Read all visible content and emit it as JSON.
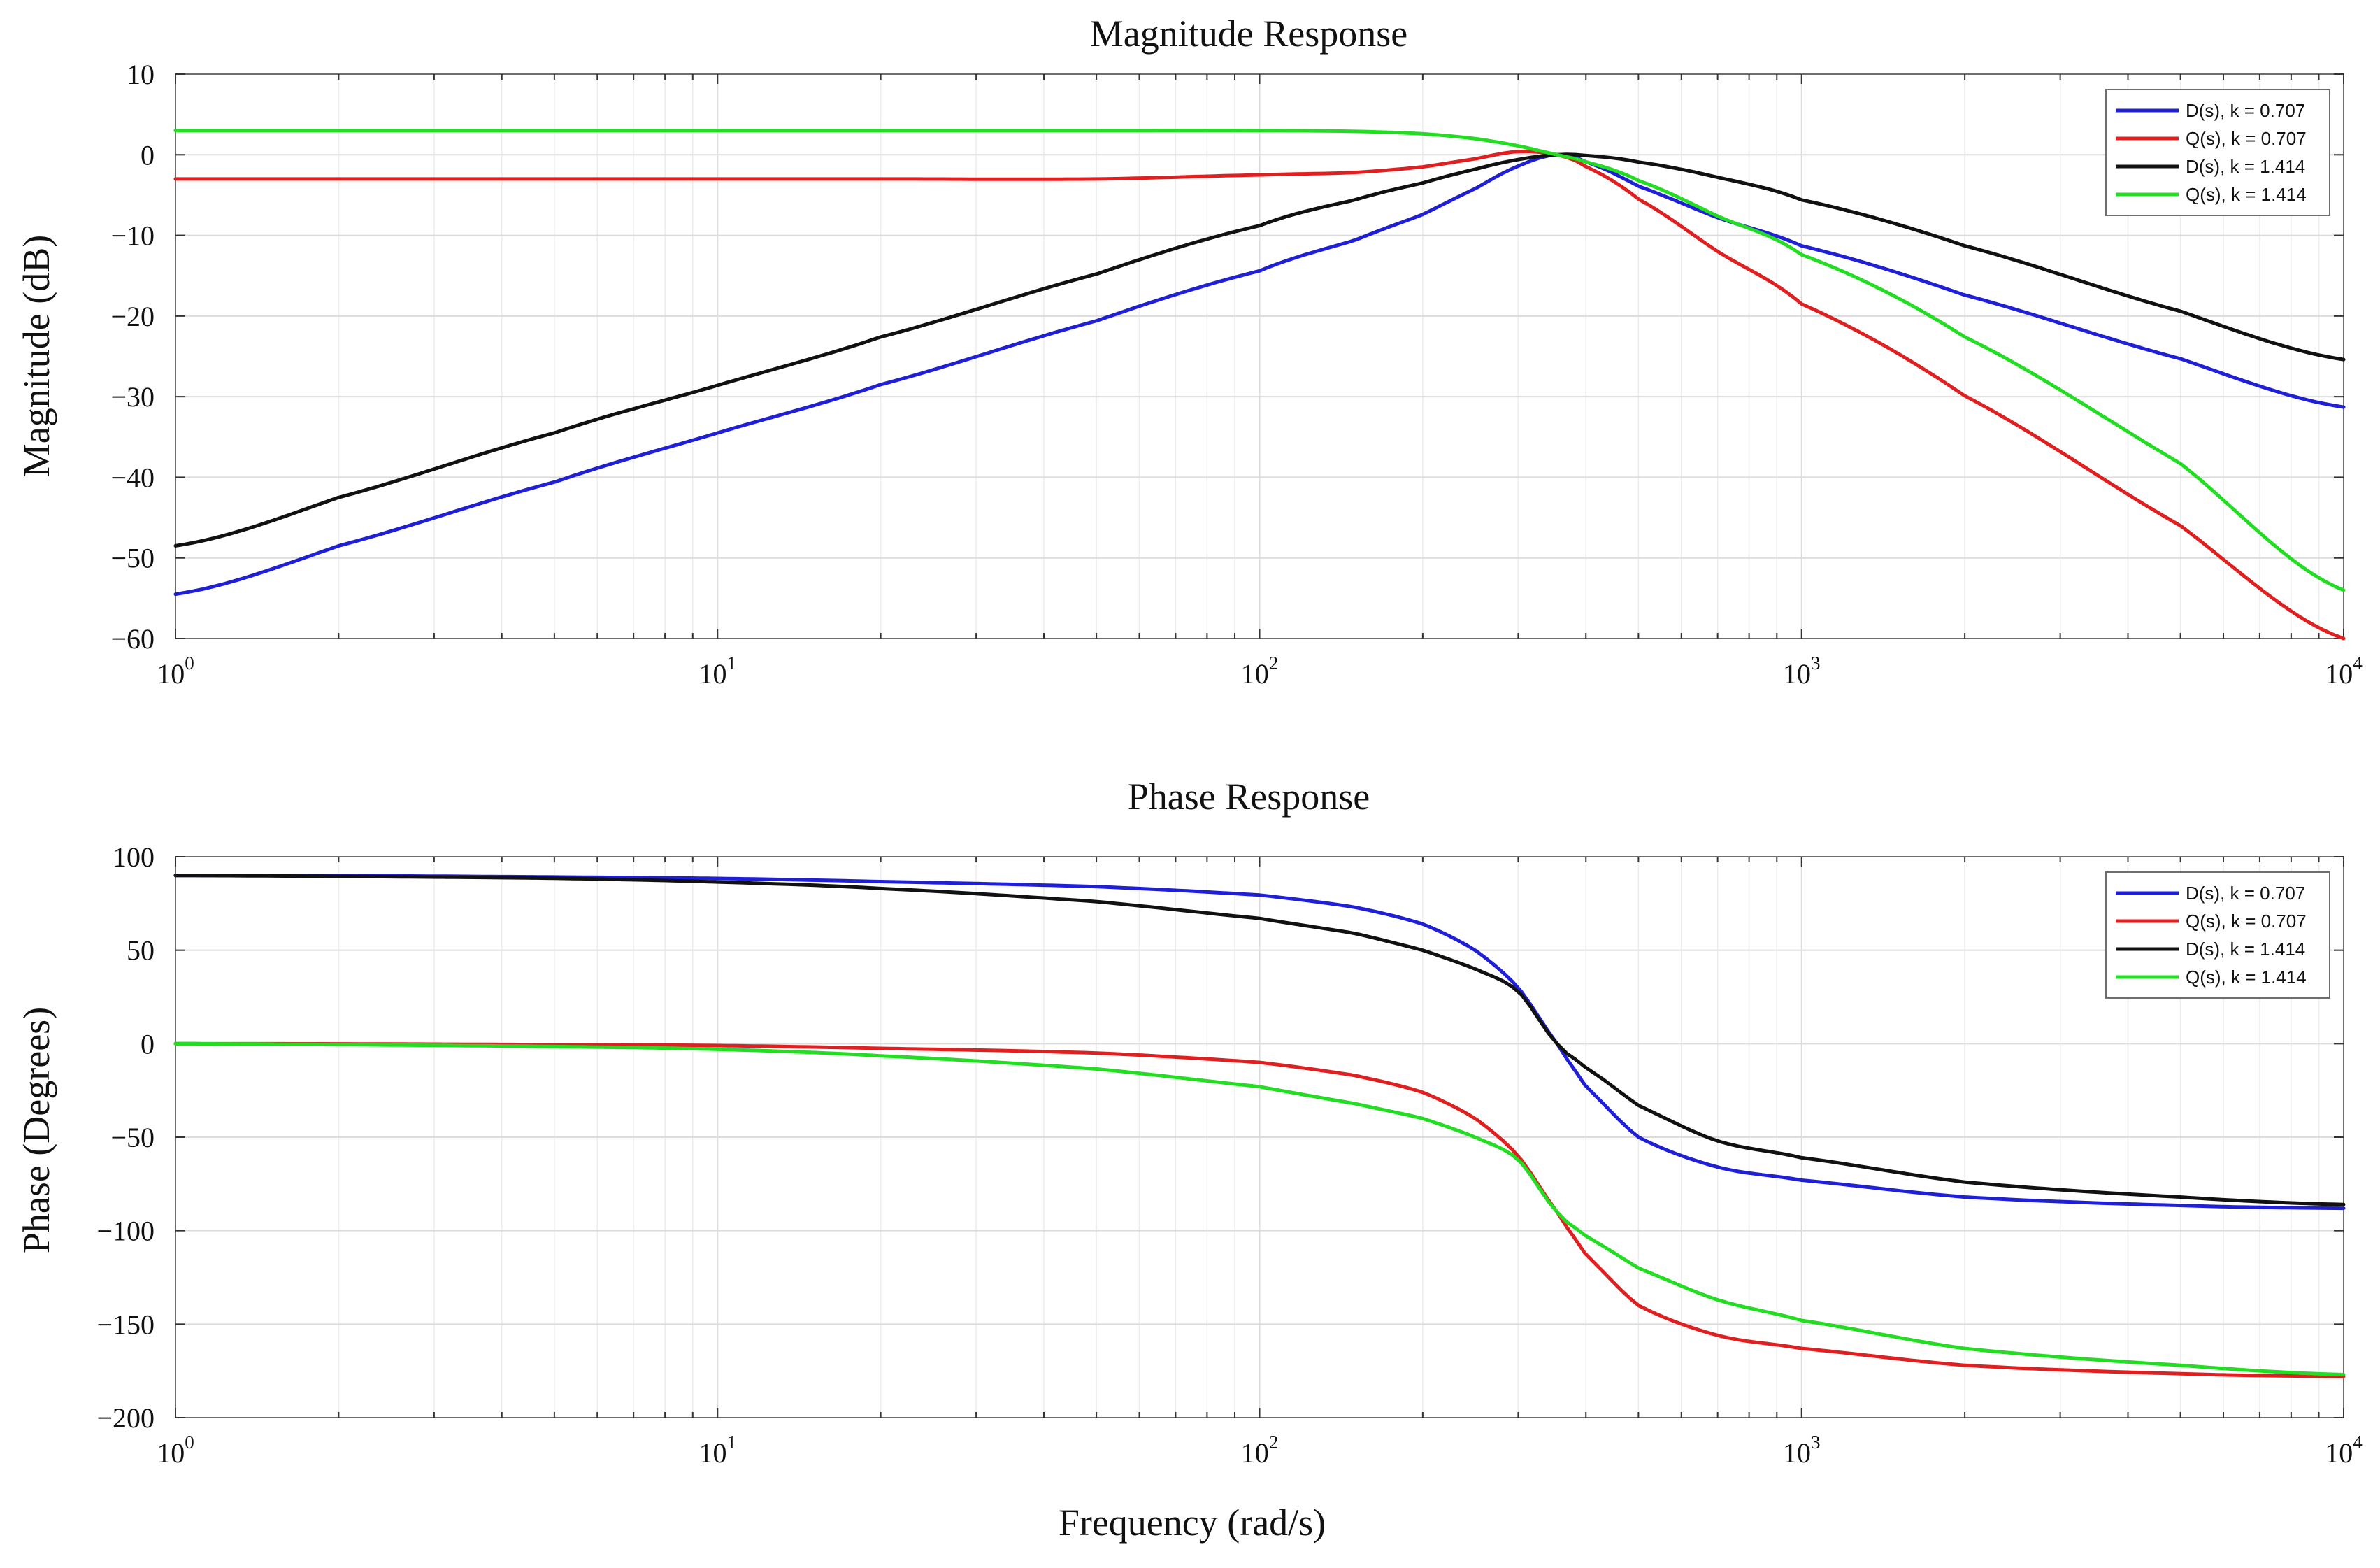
{
  "chart_data": [
    {
      "type": "line",
      "title": "Magnitude Response",
      "xlabel": "",
      "ylabel": "Magnitude  (dB)",
      "xscale": "log",
      "xlim": [
        1,
        10000
      ],
      "ylim": [
        -60,
        10
      ],
      "x_tick_labels": [
        {
          "base": "10",
          "exp": "0"
        },
        {
          "base": "10",
          "exp": "1"
        },
        {
          "base": "10",
          "exp": "2"
        },
        {
          "base": "10",
          "exp": "3"
        },
        {
          "base": "10",
          "exp": "4"
        }
      ],
      "y_ticks": [
        10,
        0,
        -10,
        -20,
        -30,
        -40,
        -50,
        -60
      ],
      "y_tick_labels": [
        "10",
        "0",
        "−10",
        "−20",
        "−30",
        "−40",
        "−50",
        "−60"
      ],
      "grid": true,
      "legend_position": "top-right",
      "x": [
        1,
        2,
        5,
        10,
        20,
        50,
        100,
        150,
        200,
        250,
        300,
        354,
        400,
        500,
        700,
        1000,
        2000,
        5000,
        10000
      ],
      "series": [
        {
          "name": "D(s), k = 0.707",
          "color": "#1f1fd8",
          "values": [
            -54.5,
            -48.5,
            -40.6,
            -34.5,
            -28.5,
            -20.6,
            -14.4,
            -10.6,
            -7.4,
            -4.2,
            -1.4,
            0.0,
            -0.9,
            -3.9,
            -7.8,
            -11.3,
            -17.4,
            -25.3,
            -31.3
          ]
        },
        {
          "name": "Q(s), k = 0.707",
          "color": "#e02020",
          "values": [
            -3.0,
            -3.0,
            -3.0,
            -3.0,
            -3.0,
            -3.0,
            -2.5,
            -2.2,
            -1.5,
            -0.5,
            0.4,
            0.0,
            -1.5,
            -5.5,
            -12.0,
            -18.5,
            -29.9,
            -46.0,
            -60.0
          ]
        },
        {
          "name": "D(s), k = 1.414",
          "color": "#111111",
          "values": [
            -48.5,
            -42.5,
            -34.5,
            -28.6,
            -22.6,
            -14.8,
            -8.8,
            -5.6,
            -3.5,
            -1.8,
            -0.6,
            0.0,
            -0.1,
            -0.9,
            -2.8,
            -5.6,
            -11.3,
            -19.4,
            -25.4
          ]
        },
        {
          "name": "Q(s), k = 1.414",
          "color": "#22dd22",
          "values": [
            3.0,
            3.0,
            3.0,
            3.0,
            3.0,
            3.0,
            3.0,
            2.9,
            2.6,
            2.0,
            1.1,
            0.0,
            -0.9,
            -3.2,
            -7.6,
            -12.4,
            -22.6,
            -38.3,
            -54.0
          ]
        }
      ]
    },
    {
      "type": "line",
      "title": "Phase Response",
      "xlabel": "Frequency  (rad/s)",
      "ylabel": "Phase  (Degrees)",
      "xscale": "log",
      "xlim": [
        1,
        10000
      ],
      "ylim": [
        -200,
        100
      ],
      "x_tick_labels": [
        {
          "base": "10",
          "exp": "0"
        },
        {
          "base": "10",
          "exp": "1"
        },
        {
          "base": "10",
          "exp": "2"
        },
        {
          "base": "10",
          "exp": "3"
        },
        {
          "base": "10",
          "exp": "4"
        }
      ],
      "y_ticks": [
        100,
        50,
        0,
        -50,
        -100,
        -150,
        -200
      ],
      "y_tick_labels": [
        "100",
        "50",
        "0",
        "−50",
        "−100",
        "−150",
        "−200"
      ],
      "grid": true,
      "legend_position": "top-right",
      "x": [
        1,
        2,
        5,
        10,
        20,
        50,
        100,
        150,
        200,
        250,
        300,
        354,
        400,
        500,
        700,
        1000,
        2000,
        5000,
        10000
      ],
      "series": [
        {
          "name": "D(s), k = 0.707",
          "color": "#1f1fd8",
          "values": [
            90,
            89.9,
            89.2,
            88.4,
            86.7,
            84.0,
            79.5,
            73.0,
            64.0,
            50.0,
            30.0,
            0,
            -23.0,
            -50.0,
            -66.0,
            -73.0,
            -82.0,
            -86.5,
            -88.0
          ]
        },
        {
          "name": "Q(s), k = 0.707",
          "color": "#e02020",
          "values": [
            0,
            -0.1,
            -0.5,
            -1.0,
            -2.5,
            -5.0,
            -10.0,
            -17.0,
            -26.0,
            -40.0,
            -60.0,
            -90,
            -113.0,
            -140.0,
            -156.0,
            -163.0,
            -172.0,
            -176.5,
            -178.0
          ]
        },
        {
          "name": "D(s), k = 1.414",
          "color": "#111111",
          "values": [
            90,
            89.5,
            88.5,
            86.5,
            83.0,
            76.0,
            67.0,
            59.0,
            50.0,
            40.0,
            28.0,
            0,
            -13.0,
            -33.0,
            -52.0,
            -61.0,
            -74.0,
            -82.0,
            -86.0
          ]
        },
        {
          "name": "Q(s), k = 1.414",
          "color": "#22dd22",
          "values": [
            0,
            -0.5,
            -1.5,
            -3.0,
            -6.5,
            -13.5,
            -23.0,
            -32.0,
            -40.0,
            -50.0,
            -62.0,
            -90,
            -103.0,
            -120.0,
            -137.0,
            -148.0,
            -163.0,
            -172.0,
            -177.0
          ]
        }
      ]
    }
  ]
}
